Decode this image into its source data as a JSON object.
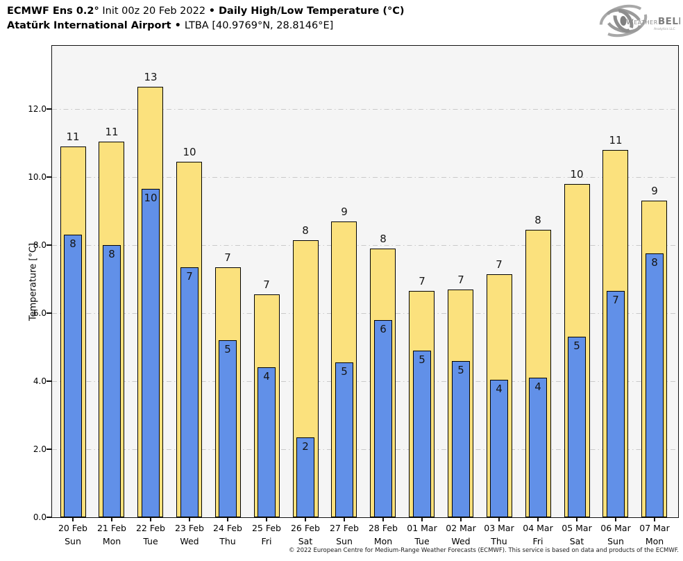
{
  "header": {
    "line1_bold_prefix": "ECMWF Ens 0.2°",
    "line1_regular": " Init 00z 20 Feb 2022 ",
    "line1_bullet": "•",
    "line1_bold_suffix": " Daily High/Low Temperature (°C)",
    "line2_bold": "Atatürk International Airport",
    "line2_bullet": " • ",
    "line2_regular": "LTBA [40.9769°N, 28.8146°E]"
  },
  "logo": {
    "part1": "Weather",
    "part2": "BELL",
    "sub": "Analytics LLC"
  },
  "chart_data": {
    "type": "bar",
    "title": "Daily High/Low Temperature (°C)",
    "ylabel": "Temperature [°C]",
    "ylim": [
      0,
      13.86
    ],
    "yticks": [
      0,
      2,
      4,
      6,
      8,
      10,
      12
    ],
    "ytick_labels": [
      "0.0",
      "2.0",
      "4.0",
      "6.0",
      "8.0",
      "10.0",
      "12.0"
    ],
    "grid": "horizontal-dash-dot",
    "legend_position": "none",
    "categories": [
      {
        "date": "20 Feb",
        "day": "Sun"
      },
      {
        "date": "21 Feb",
        "day": "Mon"
      },
      {
        "date": "22 Feb",
        "day": "Tue"
      },
      {
        "date": "23 Feb",
        "day": "Wed"
      },
      {
        "date": "24 Feb",
        "day": "Thu"
      },
      {
        "date": "25 Feb",
        "day": "Fri"
      },
      {
        "date": "26 Feb",
        "day": "Sat"
      },
      {
        "date": "27 Feb",
        "day": "Sun"
      },
      {
        "date": "28 Feb",
        "day": "Mon"
      },
      {
        "date": "01 Mar",
        "day": "Tue"
      },
      {
        "date": "02 Mar",
        "day": "Wed"
      },
      {
        "date": "03 Mar",
        "day": "Thu"
      },
      {
        "date": "04 Mar",
        "day": "Fri"
      },
      {
        "date": "05 Mar",
        "day": "Sat"
      },
      {
        "date": "06 Mar",
        "day": "Sun"
      },
      {
        "date": "07 Mar",
        "day": "Mon"
      }
    ],
    "series": [
      {
        "name": "Daily High",
        "color": "#fbe17d",
        "values": [
          10.9,
          11.05,
          12.65,
          10.45,
          7.35,
          6.55,
          8.15,
          8.7,
          7.9,
          6.65,
          6.7,
          7.15,
          8.45,
          9.8,
          10.8,
          9.3
        ],
        "labels": [
          "11",
          "11",
          "13",
          "10",
          "7",
          "7",
          "8",
          "9",
          "8",
          "7",
          "7",
          "7",
          "8",
          "10",
          "11",
          "9"
        ]
      },
      {
        "name": "Daily Low",
        "color": "#6190e8",
        "values": [
          8.3,
          8.0,
          9.65,
          7.35,
          5.2,
          4.4,
          2.35,
          4.55,
          5.8,
          4.9,
          4.6,
          4.05,
          4.1,
          5.3,
          6.65,
          7.75
        ],
        "labels": [
          "8",
          "8",
          "10",
          "7",
          "5",
          "4",
          "2",
          "5",
          "6",
          "5",
          "5",
          "4",
          "4",
          "5",
          "7",
          "8"
        ]
      }
    ]
  },
  "footer": {
    "copyright": "© 2022 European Centre for Medium-Range Weather Forecasts (ECMWF). This service is based on data and products of the ECMWF."
  }
}
